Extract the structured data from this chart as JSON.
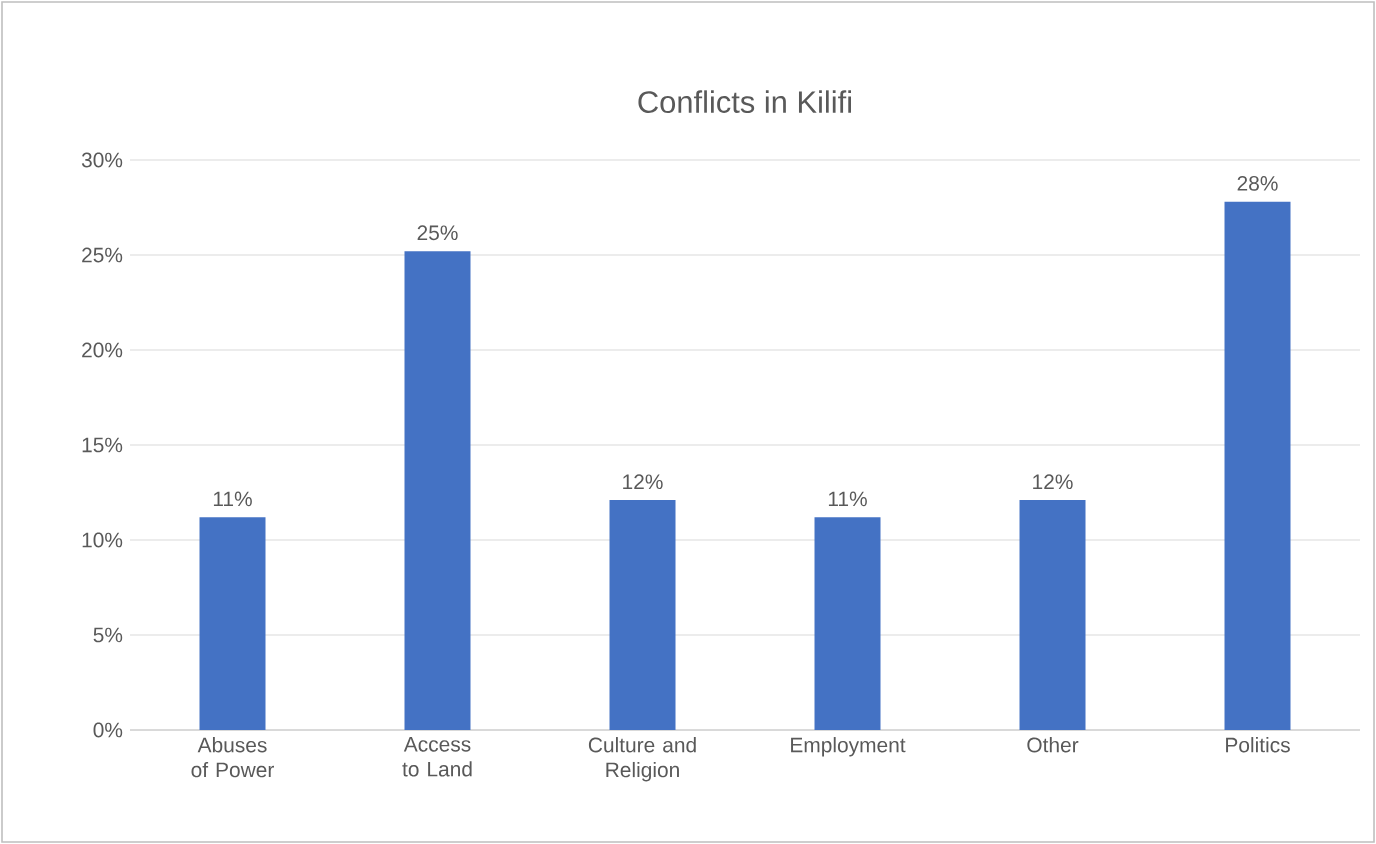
{
  "chart_data": {
    "type": "bar",
    "title": "Conflicts in Kilifi",
    "categories": [
      "Abuses of Power",
      "Access to Land",
      "Culture and Religion",
      "Employment",
      "Other",
      "Politics"
    ],
    "values": [
      11.2,
      25.2,
      12.1,
      11.2,
      12.1,
      27.8
    ],
    "value_labels": [
      "11%",
      "25%",
      "12%",
      "11%",
      "12%",
      "28%"
    ],
    "color": "#4472c4",
    "ylim": [
      0,
      30
    ],
    "yticks": [
      {
        "value": 0,
        "label": "0%"
      },
      {
        "value": 5,
        "label": "5%"
      },
      {
        "value": 10,
        "label": "10%"
      },
      {
        "value": 15,
        "label": "15%"
      },
      {
        "value": 20,
        "label": "20%"
      },
      {
        "value": 25,
        "label": "25%"
      },
      {
        "value": 30,
        "label": "30%"
      }
    ],
    "grid": "y"
  }
}
